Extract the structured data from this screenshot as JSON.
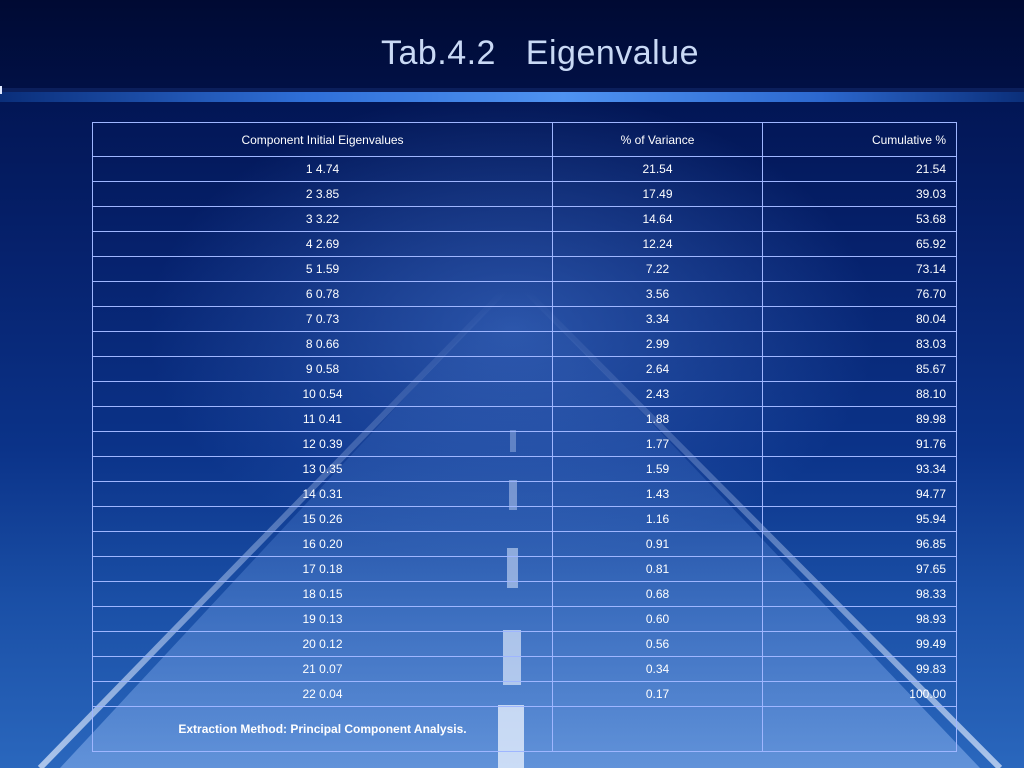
{
  "slide": {
    "title": "Tab.4.2   Eigenvalue"
  },
  "table": {
    "headers": [
      "Component Initial Eigenvalues",
      "% of Variance",
      "Cumulative %"
    ],
    "rows": [
      [
        "1 4.74",
        "21.54",
        "21.54"
      ],
      [
        "2 3.85",
        "17.49",
        "39.03"
      ],
      [
        "3 3.22",
        "14.64",
        "53.68"
      ],
      [
        "4 2.69",
        "12.24",
        "65.92"
      ],
      [
        "5 1.59",
        "7.22",
        "73.14"
      ],
      [
        "6 0.78",
        "3.56",
        "76.70"
      ],
      [
        "7 0.73",
        "3.34",
        "80.04"
      ],
      [
        "8 0.66",
        "2.99",
        "83.03"
      ],
      [
        "9 0.58",
        "2.64",
        "85.67"
      ],
      [
        "10 0.54",
        "2.43",
        "88.10"
      ],
      [
        "11 0.41",
        "1.88",
        "89.98"
      ],
      [
        "12 0.39",
        "1.77",
        "91.76"
      ],
      [
        "13 0.35",
        "1.59",
        "93.34"
      ],
      [
        "14 0.31",
        "1.43",
        "94.77"
      ],
      [
        "15 0.26",
        "1.16",
        "95.94"
      ],
      [
        "16 0.20",
        "0.91",
        "96.85"
      ],
      [
        "17 0.18",
        "0.81",
        "97.65"
      ],
      [
        "18 0.15",
        "0.68",
        "98.33"
      ],
      [
        "19 0.13",
        "0.60",
        "98.93"
      ],
      [
        "20 0.12",
        "0.56",
        "99.49"
      ],
      [
        "21 0.07",
        "0.34",
        "99.83"
      ],
      [
        "22 0.04",
        "0.17",
        "100.00"
      ]
    ],
    "footer_note": "Extraction Method: Principal Component Analysis."
  }
}
